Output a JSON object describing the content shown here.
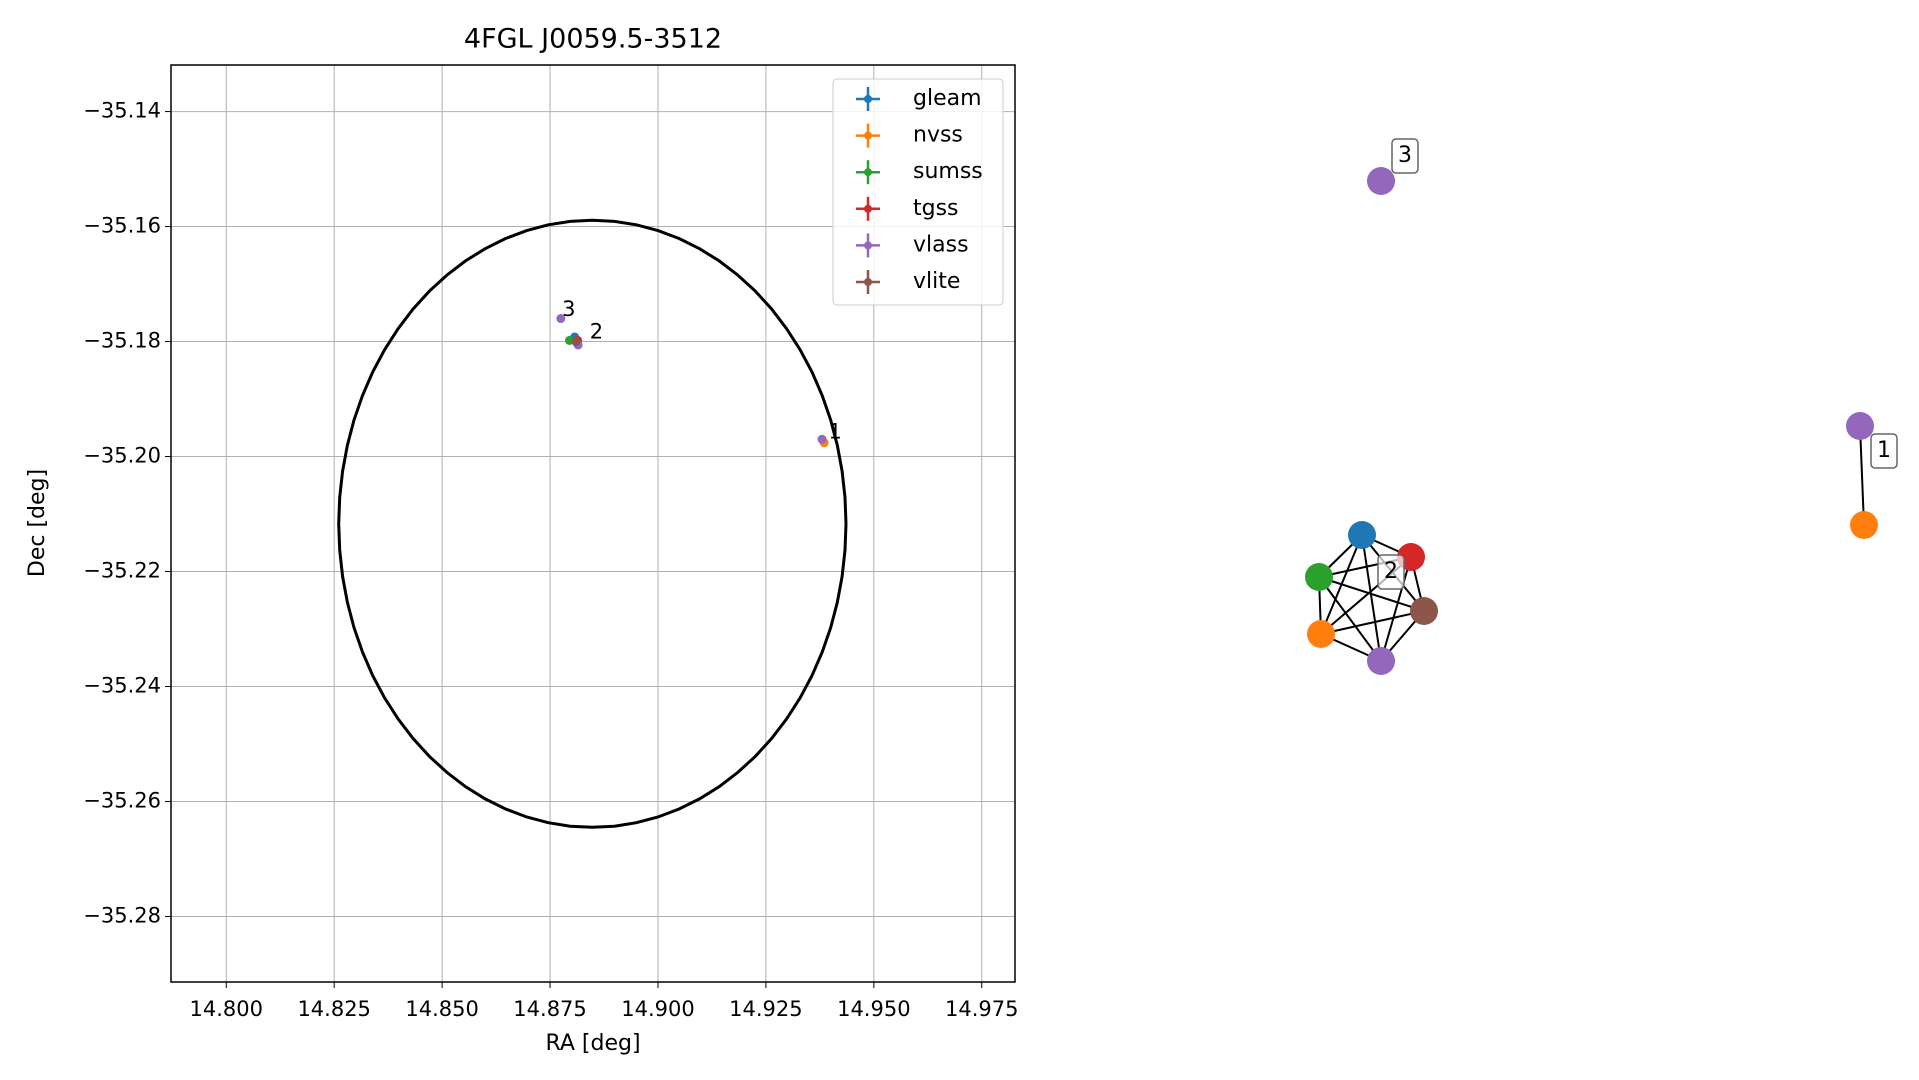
{
  "chart_data": [
    {
      "type": "scatter",
      "title": "4FGL J0059.5-3512",
      "xlabel": "RA [deg]",
      "ylabel": "Dec [deg]",
      "xlim": [
        14.7872,
        14.9827
      ],
      "ylim": [
        -35.2914,
        -35.1319
      ],
      "xticks": [
        {
          "value": 14.8,
          "label": "14.800"
        },
        {
          "value": 14.825,
          "label": "14.825"
        },
        {
          "value": 14.85,
          "label": "14.850"
        },
        {
          "value": 14.875,
          "label": "14.875"
        },
        {
          "value": 14.9,
          "label": "14.900"
        },
        {
          "value": 14.925,
          "label": "14.925"
        },
        {
          "value": 14.95,
          "label": "14.950"
        },
        {
          "value": 14.975,
          "label": "14.975"
        }
      ],
      "yticks": [
        {
          "value": -35.14,
          "label": "−35.14"
        },
        {
          "value": -35.16,
          "label": "−35.16"
        },
        {
          "value": -35.18,
          "label": "−35.18"
        },
        {
          "value": -35.2,
          "label": "−35.20"
        },
        {
          "value": -35.22,
          "label": "−35.22"
        },
        {
          "value": -35.24,
          "label": "−35.24"
        },
        {
          "value": -35.26,
          "label": "−35.26"
        },
        {
          "value": -35.28,
          "label": "−35.28"
        }
      ],
      "grid": true,
      "legend": "upper right",
      "series": [
        {
          "name": "gleam",
          "color": "#1f77b4",
          "x": [
            14.8807
          ],
          "values": [
            -35.1792
          ]
        },
        {
          "name": "nvss",
          "color": "#ff7f0e",
          "x": [
            14.8812,
            14.9385
          ],
          "values": [
            -35.1802,
            -35.1976
          ]
        },
        {
          "name": "sumss",
          "color": "#2ca02c",
          "x": [
            14.8795
          ],
          "values": [
            -35.1798
          ]
        },
        {
          "name": "tgss",
          "color": "#d62728",
          "x": [
            14.8814
          ],
          "values": [
            -35.1798
          ]
        },
        {
          "name": "vlass",
          "color": "#9467bd",
          "x": [
            14.8775,
            14.8815,
            14.938
          ],
          "values": [
            -35.176,
            -35.1806,
            -35.197
          ]
        },
        {
          "name": "vlite",
          "color": "#8c564b",
          "x": [
            14.881
          ],
          "values": [
            -35.18
          ]
        }
      ],
      "annotations": [
        {
          "text": "3",
          "x": 14.8778,
          "y": -35.1745
        },
        {
          "text": "2",
          "x": 14.8842,
          "y": -35.1784
        },
        {
          "text": "1",
          "x": 14.9395,
          "y": -35.1958
        }
      ],
      "ellipse": {
        "x": 14.8848,
        "y": -35.2117,
        "width": 0.1175,
        "height": 0.1056
      }
    },
    {
      "type": "network",
      "groups": [
        {
          "label": "3",
          "nodes": [
            "vlass"
          ]
        },
        {
          "label": "1",
          "nodes": [
            "vlass",
            "nvss"
          ]
        },
        {
          "label": "2",
          "nodes": [
            "gleam",
            "tgss",
            "sumss",
            "vlite",
            "nvss",
            "vlass"
          ]
        }
      ]
    }
  ]
}
